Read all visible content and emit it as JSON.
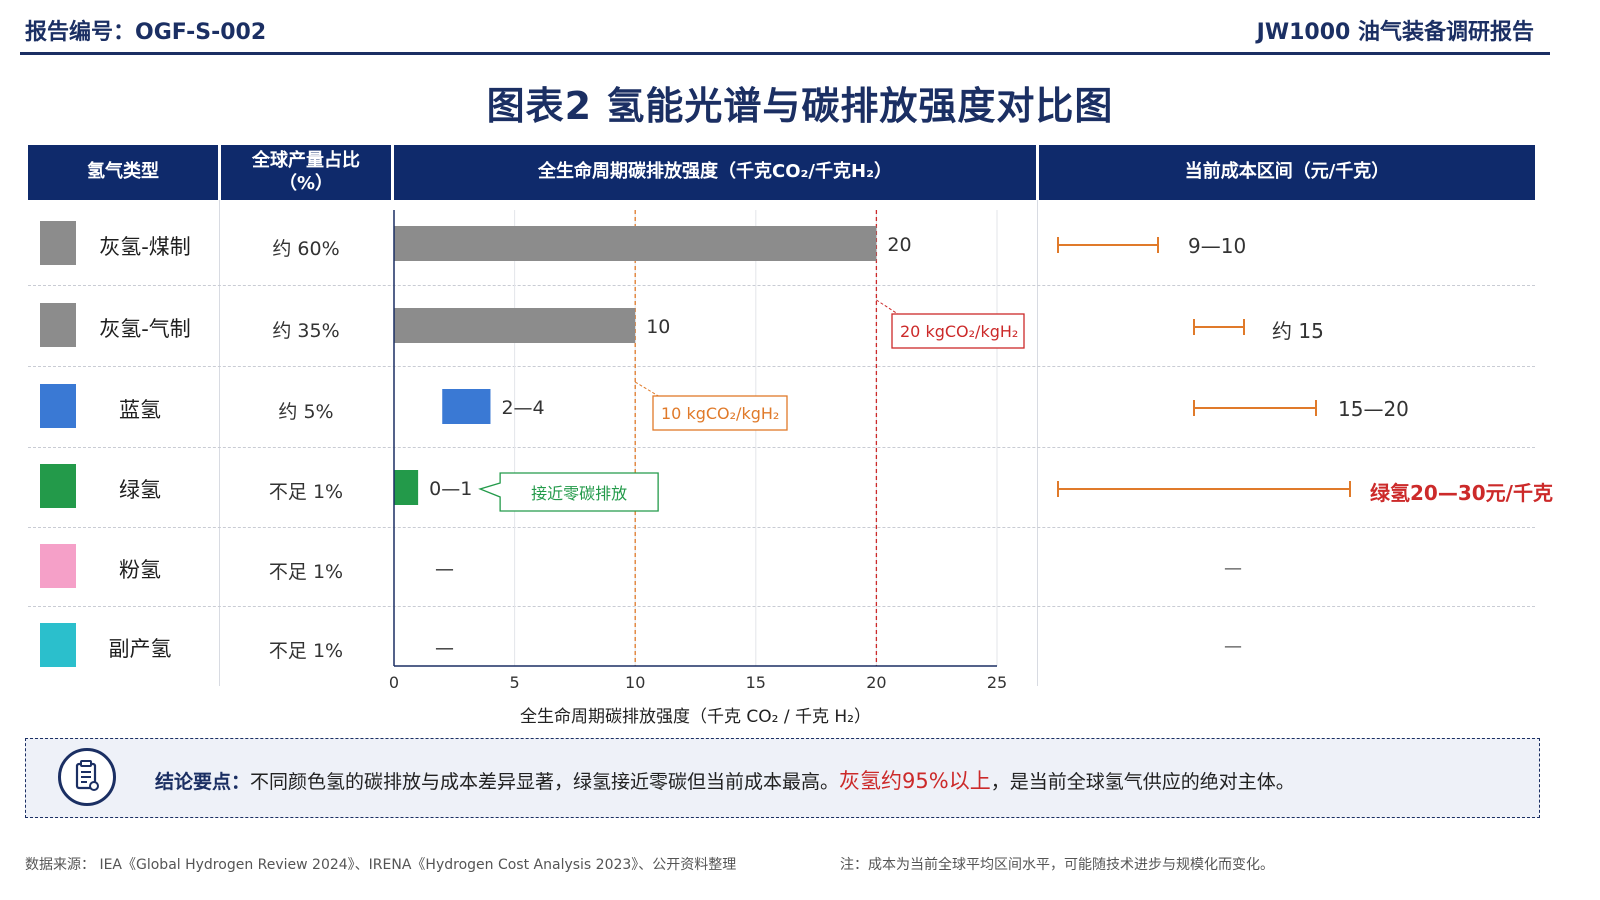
{
  "header": {
    "report_id": "报告编号：OGF-S-002",
    "report_name": "JW1000 油气装备调研报告"
  },
  "title": "图表2  氢能光谱与碳排放强度对比图",
  "table_headers": {
    "type": "氢气类型",
    "share_line1": "全球产量占比",
    "share_line2": "（%）",
    "emission": "全生命周期碳排放强度（千克CO₂/千克H₂）",
    "cost": "当前成本区间（元/千克）"
  },
  "colors": {
    "header_bg": "#0f2a6b",
    "gray": "#8c8c8c",
    "blue": "#3a79d4",
    "green": "#239a4a",
    "pink": "#f5a0c8",
    "cyan": "#2bbfcc",
    "orange": "#e07a2a",
    "red": "#cc2a2a"
  },
  "rows": [
    {
      "type": "灰氢-煤制",
      "share": "约 60%",
      "swatch": "#8c8c8c",
      "cost_label": "9—10"
    },
    {
      "type": "灰氢-气制",
      "share": "约 35%",
      "swatch": "#8c8c8c",
      "cost_label": "约 15"
    },
    {
      "type": "蓝氢",
      "share": "约 5%",
      "swatch": "#3a79d4",
      "cost_label": "15—20"
    },
    {
      "type": "绿氢",
      "share": "不足 1%",
      "swatch": "#239a4a",
      "cost_label": "绿氢20—30元/千克"
    },
    {
      "type": "粉氢",
      "share": "不足 1%",
      "swatch": "#f5a0c8",
      "cost_label": "—"
    },
    {
      "type": "副产氢",
      "share": "不足 1%",
      "swatch": "#2bbfcc",
      "cost_label": "—"
    }
  ],
  "chart_data": {
    "type": "bar",
    "orientation": "horizontal",
    "categories": [
      "灰氢-煤制",
      "灰氢-气制",
      "蓝氢",
      "绿氢",
      "粉氢",
      "副产氢"
    ],
    "ranges": [
      [
        0,
        20
      ],
      [
        0,
        10
      ],
      [
        2,
        4
      ],
      [
        0,
        1
      ],
      null,
      null
    ],
    "data_labels": [
      "20",
      "10",
      "2—4",
      "0—1",
      "—",
      "—"
    ],
    "bar_colors": [
      "#8c8c8c",
      "#8c8c8c",
      "#3a79d4",
      "#239a4a",
      "#f5a0c8",
      "#2bbfcc"
    ],
    "xlim": [
      0,
      25
    ],
    "xticks": [
      0,
      5,
      10,
      15,
      20,
      25
    ],
    "xlabel": "全生命周期碳排放强度（千克 CO₂ / 千克 H₂）",
    "grid": true,
    "reference_lines": [
      {
        "value": 20,
        "label": "20 kgCO₂/kgH₂",
        "color": "#cc2a2a"
      },
      {
        "value": 10,
        "label": "10 kgCO₂/kgH₂",
        "color": "#e07a2a"
      }
    ],
    "callout": {
      "label": "接近零碳排放",
      "color": "#239a4a"
    }
  },
  "cost_chart": {
    "note": "",
    "ranges": [
      [
        9,
        10
      ],
      [
        15,
        15
      ],
      [
        15,
        20
      ],
      [
        20,
        30
      ],
      null,
      null
    ]
  },
  "conclusion": {
    "key": "结论要点：",
    "text1": "不同颜色氢的碳排放与成本差异显著，绿氢接近零碳但当前成本最高。",
    "highlight": "灰氢约95%以上",
    "text2": "，是当前全球氢气供应的绝对主体。"
  },
  "footer": {
    "source": "数据来源： IEA《Global Hydrogen Review 2024》、IRENA《Hydrogen Cost Analysis 2023》、公开资料整理",
    "note": "注：成本为当前全球平均区间水平，可能随技术进步与规模化而变化。"
  }
}
